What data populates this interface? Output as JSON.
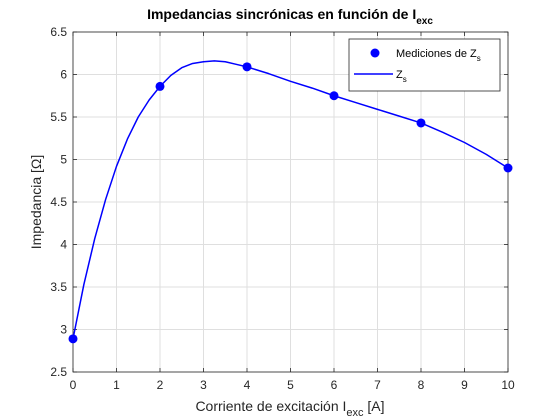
{
  "chart_data": {
    "type": "line",
    "title": "Impedancias sincrónicas en función de I",
    "title_subscript": "exc",
    "xlabel": "Corriente de excitación I",
    "xlabel_subscript": "exc",
    "xlabel_suffix": " [A]",
    "ylabel": "Impedancia [Ω]",
    "xlim": [
      0,
      10
    ],
    "ylim": [
      2.5,
      6.5
    ],
    "xticks": [
      0,
      1,
      2,
      3,
      4,
      5,
      6,
      7,
      8,
      9,
      10
    ],
    "yticks": [
      2.5,
      3,
      3.5,
      4,
      4.5,
      5,
      5.5,
      6,
      6.5
    ],
    "grid": true,
    "legend_position": "top-right",
    "series": [
      {
        "name": "Mediciones de Z",
        "name_subscript": "s",
        "kind": "scatter",
        "color": "#0000ff",
        "x": [
          0,
          2,
          4,
          6,
          8,
          10
        ],
        "y": [
          2.89,
          5.86,
          6.09,
          5.75,
          5.43,
          4.9
        ]
      },
      {
        "name": "Z",
        "name_subscript": "s",
        "kind": "line",
        "color": "#0000ff",
        "x": [
          0,
          0.25,
          0.5,
          0.75,
          1,
          1.25,
          1.5,
          1.75,
          2,
          2.25,
          2.5,
          2.75,
          3,
          3.25,
          3.5,
          3.75,
          4,
          4.5,
          5,
          5.5,
          6,
          6.5,
          7,
          7.5,
          8,
          8.5,
          9,
          9.5,
          10
        ],
        "y": [
          2.89,
          3.53,
          4.07,
          4.53,
          4.92,
          5.24,
          5.5,
          5.7,
          5.86,
          5.99,
          6.08,
          6.13,
          6.15,
          6.16,
          6.15,
          6.12,
          6.09,
          6.01,
          5.92,
          5.84,
          5.75,
          5.67,
          5.59,
          5.51,
          5.43,
          5.32,
          5.2,
          5.06,
          4.9
        ]
      }
    ]
  }
}
